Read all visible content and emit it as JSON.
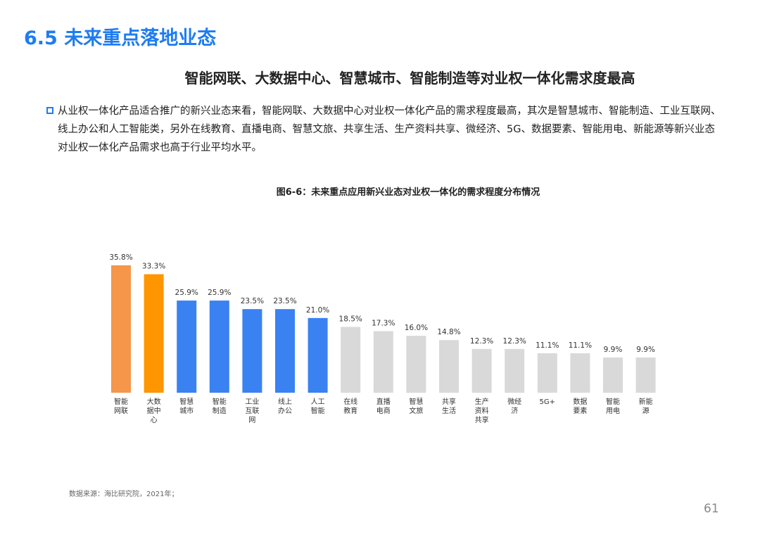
{
  "header": {
    "title": "6.5 未来重点落地业态",
    "subtitle": "智能网联、大数据中心、智慧城市、智能制造等对业权一体化需求度最高"
  },
  "body": {
    "paragraph": "从业权一体化产品适合推广的新兴业态来看，智能网联、大数据中心对业权一体化产品的需求程度最高，其次是智慧城市、智能制造、工业互联网、线上办公和人工智能类，另外在线教育、直播电商、智慧文旅、共享生活、生产资料共享、微经济、5G、数据要素、智能用电、新能源等新兴业态对业权一体化产品需求也高于行业平均水平。"
  },
  "chart_data": {
    "type": "bar",
    "title": "图6-6：未来重点应用新兴业态对业权一体化的需求程度分布情况",
    "categories": [
      "智能网联",
      "大数据中心",
      "智慧城市",
      "智能制造",
      "工业互联网",
      "线上办公",
      "人工智能",
      "在线教育",
      "直播电商",
      "智慧文旅",
      "共享生活",
      "生产资料共享",
      "微经济",
      "5G+",
      "数据要素",
      "智能用电",
      "新能源"
    ],
    "values": [
      35.8,
      33.3,
      25.9,
      25.9,
      23.5,
      23.5,
      21.0,
      18.5,
      17.3,
      16.0,
      14.8,
      12.3,
      12.3,
      11.1,
      11.1,
      9.9,
      9.9
    ],
    "value_labels": [
      "35.8%",
      "33.3%",
      "25.9%",
      "25.9%",
      "23.5%",
      "23.5%",
      "21.0%",
      "18.5%",
      "17.3%",
      "16.0%",
      "14.8%",
      "12.3%",
      "12.3%",
      "11.1%",
      "11.1%",
      "9.9%",
      "9.9%"
    ],
    "colors": [
      "#f5964a",
      "#ff9500",
      "#3a82f2",
      "#3a82f2",
      "#3a82f2",
      "#3a82f2",
      "#3a82f2",
      "#d9d9d9",
      "#d9d9d9",
      "#d9d9d9",
      "#d9d9d9",
      "#d9d9d9",
      "#d9d9d9",
      "#d9d9d9",
      "#d9d9d9",
      "#d9d9d9",
      "#d9d9d9"
    ],
    "xlabel": "",
    "ylabel": "",
    "ylim": [
      0,
      36
    ],
    "grid": false
  },
  "footer": {
    "source": "数据来源：海比研究院，2021年；",
    "page": "61"
  }
}
